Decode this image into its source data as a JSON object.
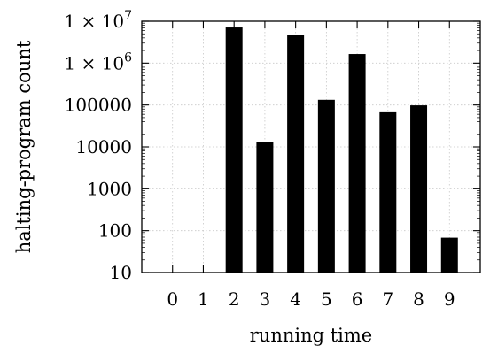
{
  "chart_data": {
    "type": "bar",
    "xlabel": "running time",
    "ylabel": "halting-program count",
    "categories": [
      "0",
      "1",
      "2",
      "3",
      "4",
      "5",
      "6",
      "7",
      "8",
      "9"
    ],
    "values": [
      null,
      null,
      7100000,
      13300,
      4800000,
      133000,
      1650000,
      67000,
      98000,
      68
    ],
    "ylim": [
      10,
      10000000
    ],
    "yscale": "log",
    "yticks": [
      {
        "value": 10,
        "label": "10"
      },
      {
        "value": 100,
        "label": "100"
      },
      {
        "value": 1000,
        "label": "1000"
      },
      {
        "value": 10000,
        "label": "10000"
      },
      {
        "value": 100000,
        "label": "100000"
      },
      {
        "value": 1000000,
        "label": "1 × 10",
        "exp": "6"
      },
      {
        "value": 10000000,
        "label": "1 × 10",
        "exp": "7"
      }
    ],
    "grid": true,
    "bar_color": "#000000"
  }
}
